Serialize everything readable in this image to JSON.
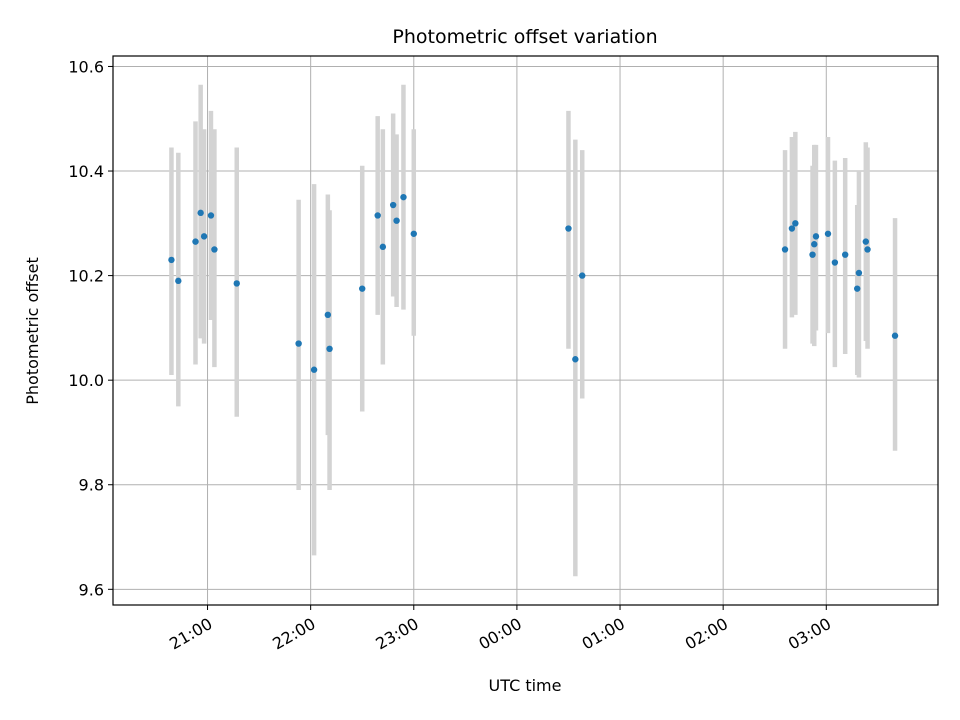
{
  "chart_data": {
    "type": "scatter",
    "title": "Photometric offset variation",
    "xlabel": "UTC time",
    "ylabel": "Photometric offset",
    "ylim": [
      9.57,
      10.62
    ],
    "yticks": [
      "9.6",
      "9.8",
      "10.0",
      "10.2",
      "10.4",
      "10.6"
    ],
    "xlim": [
      "20:05",
      "04:05"
    ],
    "xticks": [
      "21:00",
      "22:00",
      "23:00",
      "00:00",
      "01:00",
      "02:00",
      "03:00"
    ],
    "grid": true,
    "colors": {
      "point": "#1f77b4",
      "errorbar": "#d3d3d3",
      "grid": "#b0b0b0"
    },
    "points": [
      {
        "t": "20:39",
        "y": 10.23,
        "low": 10.01,
        "high": 10.445
      },
      {
        "t": "20:43",
        "y": 10.19,
        "low": 9.95,
        "high": 10.435
      },
      {
        "t": "20:53",
        "y": 10.265,
        "low": 10.03,
        "high": 10.495
      },
      {
        "t": "20:56",
        "y": 10.32,
        "low": 10.08,
        "high": 10.565
      },
      {
        "t": "20:58",
        "y": 10.275,
        "low": 10.07,
        "high": 10.48
      },
      {
        "t": "21:02",
        "y": 10.315,
        "low": 10.115,
        "high": 10.515
      },
      {
        "t": "21:04",
        "y": 10.25,
        "low": 10.025,
        "high": 10.48
      },
      {
        "t": "21:17",
        "y": 10.185,
        "low": 9.93,
        "high": 10.445
      },
      {
        "t": "21:53",
        "y": 10.07,
        "low": 9.79,
        "high": 10.345
      },
      {
        "t": "22:02",
        "y": 10.02,
        "low": 9.665,
        "high": 10.375
      },
      {
        "t": "22:10",
        "y": 10.125,
        "low": 9.895,
        "high": 10.355
      },
      {
        "t": "22:11",
        "y": 10.06,
        "low": 9.79,
        "high": 10.325
      },
      {
        "t": "22:30",
        "y": 10.175,
        "low": 9.94,
        "high": 10.41
      },
      {
        "t": "22:39",
        "y": 10.315,
        "low": 10.125,
        "high": 10.505
      },
      {
        "t": "22:42",
        "y": 10.255,
        "low": 10.03,
        "high": 10.48
      },
      {
        "t": "22:48",
        "y": 10.335,
        "low": 10.16,
        "high": 10.51
      },
      {
        "t": "22:50",
        "y": 10.305,
        "low": 10.14,
        "high": 10.47
      },
      {
        "t": "22:54",
        "y": 10.35,
        "low": 10.135,
        "high": 10.565
      },
      {
        "t": "23:00",
        "y": 10.28,
        "low": 10.085,
        "high": 10.48
      },
      {
        "t": "00:30",
        "y": 10.29,
        "low": 10.06,
        "high": 10.515
      },
      {
        "t": "00:34",
        "y": 10.04,
        "low": 9.625,
        "high": 10.46
      },
      {
        "t": "00:38",
        "y": 10.2,
        "low": 9.965,
        "high": 10.44
      },
      {
        "t": "02:36",
        "y": 10.25,
        "low": 10.06,
        "high": 10.44
      },
      {
        "t": "02:40",
        "y": 10.29,
        "low": 10.12,
        "high": 10.465
      },
      {
        "t": "02:42",
        "y": 10.3,
        "low": 10.125,
        "high": 10.475
      },
      {
        "t": "02:52",
        "y": 10.24,
        "low": 10.07,
        "high": 10.41
      },
      {
        "t": "02:53",
        "y": 10.26,
        "low": 10.065,
        "high": 10.45
      },
      {
        "t": "02:54",
        "y": 10.275,
        "low": 10.095,
        "high": 10.45
      },
      {
        "t": "03:01",
        "y": 10.28,
        "low": 10.09,
        "high": 10.465
      },
      {
        "t": "03:05",
        "y": 10.225,
        "low": 10.025,
        "high": 10.42
      },
      {
        "t": "03:11",
        "y": 10.24,
        "low": 10.05,
        "high": 10.425
      },
      {
        "t": "03:18",
        "y": 10.175,
        "low": 10.01,
        "high": 10.335
      },
      {
        "t": "03:19",
        "y": 10.205,
        "low": 10.005,
        "high": 10.4
      },
      {
        "t": "03:23",
        "y": 10.265,
        "low": 10.075,
        "high": 10.455
      },
      {
        "t": "03:24",
        "y": 10.25,
        "low": 10.06,
        "high": 10.445
      },
      {
        "t": "03:40",
        "y": 10.085,
        "low": 9.865,
        "high": 10.31
      }
    ]
  }
}
